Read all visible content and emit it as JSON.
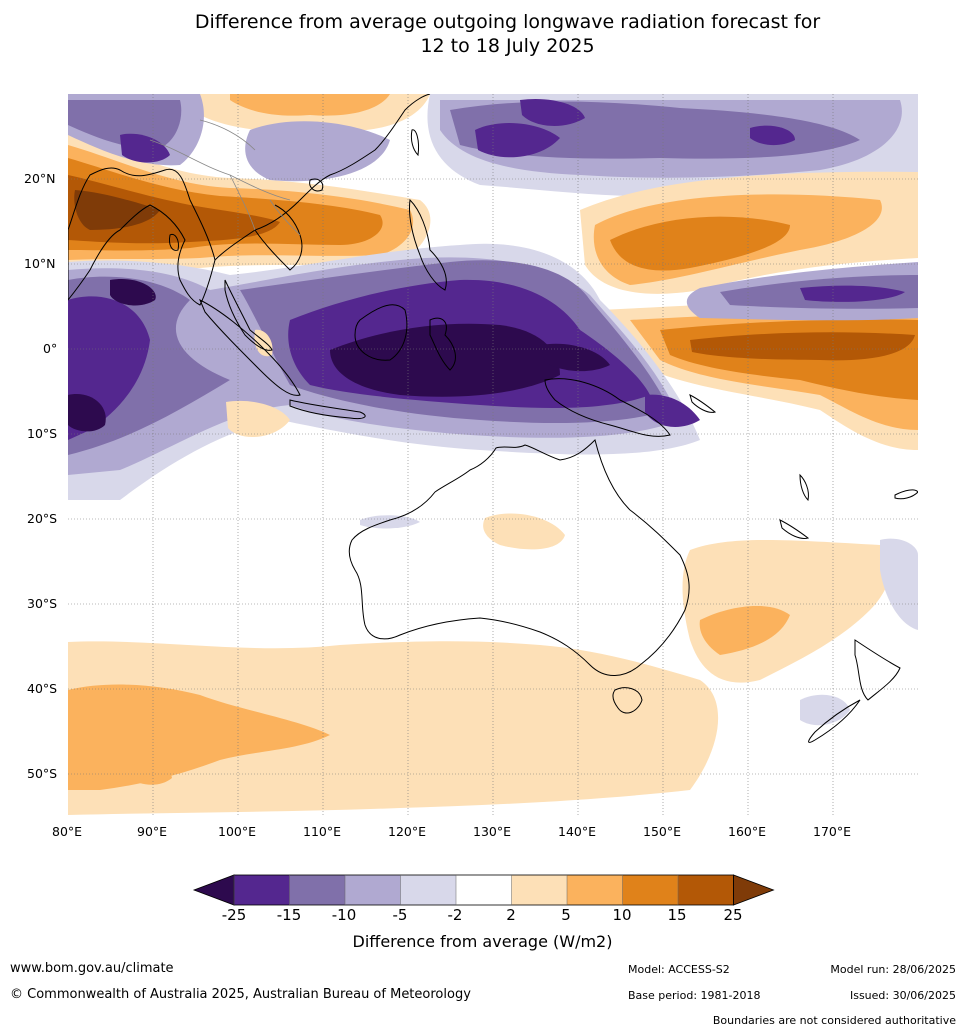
{
  "title_line1": "Difference from average outgoing longwave radiation forecast for",
  "title_line2": "12 to 18 July 2025",
  "map": {
    "lon_range": [
      80,
      180
    ],
    "lat_range": [
      -55,
      30
    ],
    "lon_ticks": [
      "80°E",
      "90°E",
      "100°E",
      "110°E",
      "120°E",
      "130°E",
      "140°E",
      "150°E",
      "160°E",
      "170°E"
    ],
    "lat_ticks": [
      "20°N",
      "10°N",
      "0°",
      "10°S",
      "20°S",
      "30°S",
      "40°S",
      "50°S"
    ],
    "grid": true
  },
  "colorbar": {
    "title": "Difference from average (W/m2)",
    "labels": [
      "-25",
      "-15",
      "-10",
      "-5",
      "-2",
      "2",
      "5",
      "10",
      "15",
      "25"
    ],
    "colors": [
      "#2d0a4e",
      "#54278f",
      "#8070aa",
      "#b0a9d1",
      "#d8d8ea",
      "#ffffff",
      "#fde0b7",
      "#fbb25d",
      "#e0821a",
      "#b35806",
      "#7f3b08"
    ]
  },
  "footer": {
    "website": "www.bom.gov.au/climate",
    "copyright": "© Commonwealth of Australia 2025, Australian Bureau of Meteorology",
    "model": "Model: ACCESS-S2",
    "base_period": "Base period: 1981-2018",
    "model_run": "Model run: 28/06/2025",
    "issued": "Issued: 30/06/2025",
    "disclaimer": "Boundaries are not considered authoritative"
  }
}
